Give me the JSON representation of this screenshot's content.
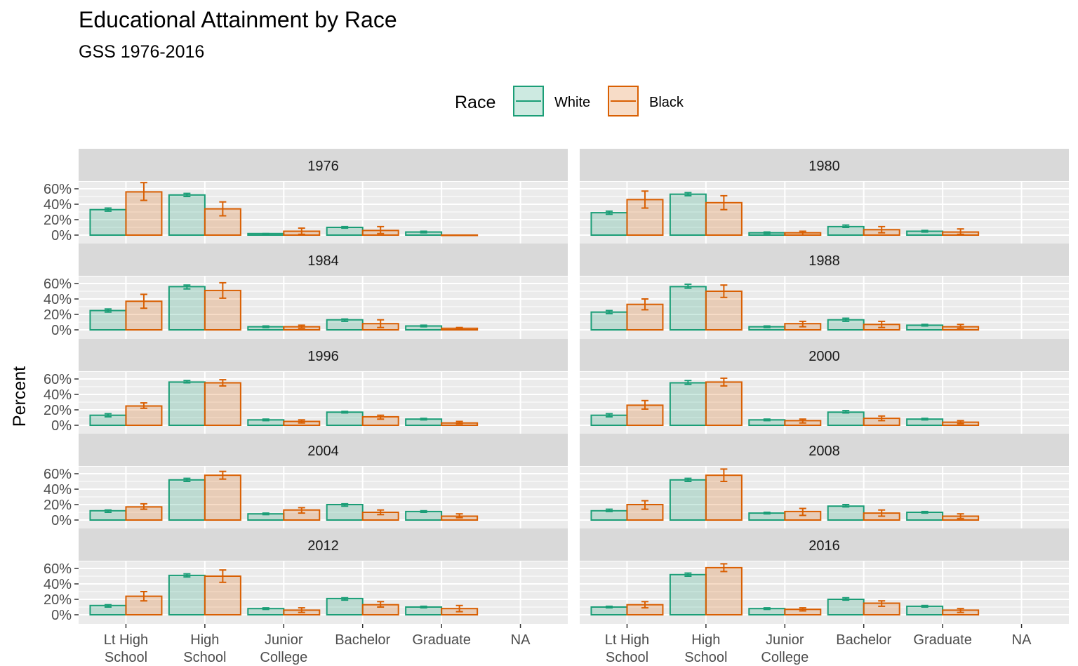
{
  "title": "Educational Attainment by Race",
  "subtitle": "GSS 1976-2016",
  "colors": {
    "White": "#1b9e77",
    "Black": "#d95f02",
    "panel_bg": "#ebebeb",
    "strip_bg": "#d9d9d9"
  },
  "chart_data": {
    "type": "bar",
    "title": "Educational Attainment by Race",
    "subtitle": "GSS 1976-2016",
    "xlabel": "",
    "ylabel": "Percent",
    "y_ticks": [
      "0%",
      "20%",
      "40%",
      "60%"
    ],
    "ylim": [
      0,
      0.68
    ],
    "categories": [
      [
        "Lt High",
        "School"
      ],
      [
        "High",
        "School"
      ],
      [
        "Junior",
        "College"
      ],
      [
        "Bachelor"
      ],
      [
        "Graduate"
      ],
      [
        "NA"
      ]
    ],
    "legend": {
      "title": "Race",
      "position": "top",
      "entries": [
        "White",
        "Black"
      ]
    },
    "panels": [
      {
        "year": "1976",
        "series": [
          {
            "name": "White",
            "values": [
              0.33,
              0.52,
              0.02,
              0.1,
              0.04
            ],
            "lower": [
              0.31,
              0.5,
              0.01,
              0.09,
              0.03
            ],
            "upper": [
              0.35,
              0.54,
              0.02,
              0.11,
              0.05
            ]
          },
          {
            "name": "Black",
            "values": [
              0.56,
              0.34,
              0.05,
              0.06,
              0.0
            ],
            "lower": [
              0.45,
              0.25,
              0.01,
              0.02,
              0.0
            ],
            "upper": [
              0.68,
              0.43,
              0.09,
              0.11,
              0.0
            ]
          }
        ]
      },
      {
        "year": "1980",
        "series": [
          {
            "name": "White",
            "values": [
              0.29,
              0.53,
              0.03,
              0.11,
              0.05
            ],
            "lower": [
              0.27,
              0.51,
              0.02,
              0.1,
              0.04
            ],
            "upper": [
              0.31,
              0.55,
              0.04,
              0.13,
              0.06
            ]
          },
          {
            "name": "Black",
            "values": [
              0.46,
              0.42,
              0.03,
              0.07,
              0.04
            ],
            "lower": [
              0.35,
              0.33,
              0.0,
              0.03,
              0.01
            ],
            "upper": [
              0.57,
              0.51,
              0.05,
              0.11,
              0.08
            ]
          }
        ]
      },
      {
        "year": "1984",
        "series": [
          {
            "name": "White",
            "values": [
              0.25,
              0.56,
              0.04,
              0.13,
              0.05
            ],
            "lower": [
              0.23,
              0.53,
              0.03,
              0.11,
              0.04
            ],
            "upper": [
              0.27,
              0.58,
              0.05,
              0.14,
              0.06
            ]
          },
          {
            "name": "Black",
            "values": [
              0.37,
              0.51,
              0.04,
              0.08,
              0.02
            ],
            "lower": [
              0.28,
              0.41,
              0.02,
              0.03,
              0.01
            ],
            "upper": [
              0.46,
              0.61,
              0.06,
              0.13,
              0.03
            ]
          }
        ]
      },
      {
        "year": "1988",
        "series": [
          {
            "name": "White",
            "values": [
              0.23,
              0.56,
              0.04,
              0.13,
              0.06
            ],
            "lower": [
              0.21,
              0.54,
              0.03,
              0.11,
              0.05
            ],
            "upper": [
              0.25,
              0.59,
              0.05,
              0.15,
              0.07
            ]
          },
          {
            "name": "Black",
            "values": [
              0.33,
              0.5,
              0.08,
              0.07,
              0.04
            ],
            "lower": [
              0.26,
              0.42,
              0.04,
              0.03,
              0.02
            ],
            "upper": [
              0.4,
              0.58,
              0.11,
              0.11,
              0.07
            ]
          }
        ]
      },
      {
        "year": "1996",
        "series": [
          {
            "name": "White",
            "values": [
              0.13,
              0.56,
              0.07,
              0.17,
              0.08
            ],
            "lower": [
              0.11,
              0.55,
              0.06,
              0.16,
              0.07
            ],
            "upper": [
              0.15,
              0.58,
              0.08,
              0.18,
              0.09
            ]
          },
          {
            "name": "Black",
            "values": [
              0.25,
              0.55,
              0.05,
              0.11,
              0.03
            ],
            "lower": [
              0.22,
              0.51,
              0.03,
              0.08,
              0.02
            ],
            "upper": [
              0.29,
              0.59,
              0.07,
              0.13,
              0.05
            ]
          }
        ]
      },
      {
        "year": "2000",
        "series": [
          {
            "name": "White",
            "values": [
              0.13,
              0.55,
              0.07,
              0.17,
              0.08
            ],
            "lower": [
              0.11,
              0.53,
              0.06,
              0.16,
              0.07
            ],
            "upper": [
              0.15,
              0.58,
              0.08,
              0.19,
              0.09
            ]
          },
          {
            "name": "Black",
            "values": [
              0.26,
              0.56,
              0.06,
              0.09,
              0.04
            ],
            "lower": [
              0.21,
              0.51,
              0.03,
              0.06,
              0.02
            ],
            "upper": [
              0.32,
              0.61,
              0.08,
              0.12,
              0.06
            ]
          }
        ]
      },
      {
        "year": "2004",
        "series": [
          {
            "name": "White",
            "values": [
              0.12,
              0.52,
              0.08,
              0.2,
              0.11
            ],
            "lower": [
              0.1,
              0.5,
              0.07,
              0.18,
              0.1
            ],
            "upper": [
              0.13,
              0.54,
              0.09,
              0.21,
              0.12
            ]
          },
          {
            "name": "Black",
            "values": [
              0.17,
              0.58,
              0.13,
              0.1,
              0.05
            ],
            "lower": [
              0.14,
              0.53,
              0.09,
              0.07,
              0.03
            ],
            "upper": [
              0.21,
              0.63,
              0.16,
              0.13,
              0.08
            ]
          }
        ]
      },
      {
        "year": "2008",
        "series": [
          {
            "name": "White",
            "values": [
              0.12,
              0.52,
              0.09,
              0.18,
              0.1
            ],
            "lower": [
              0.11,
              0.5,
              0.08,
              0.17,
              0.09
            ],
            "upper": [
              0.14,
              0.54,
              0.1,
              0.2,
              0.11
            ]
          },
          {
            "name": "Black",
            "values": [
              0.2,
              0.58,
              0.11,
              0.09,
              0.05
            ],
            "lower": [
              0.14,
              0.5,
              0.06,
              0.05,
              0.02
            ],
            "upper": [
              0.25,
              0.66,
              0.15,
              0.13,
              0.08
            ]
          }
        ]
      },
      {
        "year": "2012",
        "series": [
          {
            "name": "White",
            "values": [
              0.12,
              0.51,
              0.08,
              0.21,
              0.1
            ],
            "lower": [
              0.1,
              0.49,
              0.07,
              0.19,
              0.09
            ],
            "upper": [
              0.13,
              0.53,
              0.09,
              0.22,
              0.11
            ]
          },
          {
            "name": "Black",
            "values": [
              0.24,
              0.5,
              0.06,
              0.13,
              0.08
            ],
            "lower": [
              0.18,
              0.42,
              0.03,
              0.1,
              0.04
            ],
            "upper": [
              0.3,
              0.58,
              0.09,
              0.17,
              0.12
            ]
          }
        ]
      },
      {
        "year": "2016",
        "series": [
          {
            "name": "White",
            "values": [
              0.1,
              0.52,
              0.08,
              0.2,
              0.11
            ],
            "lower": [
              0.09,
              0.5,
              0.07,
              0.19,
              0.1
            ],
            "upper": [
              0.11,
              0.54,
              0.09,
              0.22,
              0.12
            ]
          },
          {
            "name": "Black",
            "values": [
              0.13,
              0.61,
              0.07,
              0.15,
              0.06
            ],
            "lower": [
              0.09,
              0.56,
              0.05,
              0.11,
              0.03
            ],
            "upper": [
              0.17,
              0.66,
              0.09,
              0.18,
              0.08
            ]
          }
        ]
      }
    ]
  }
}
